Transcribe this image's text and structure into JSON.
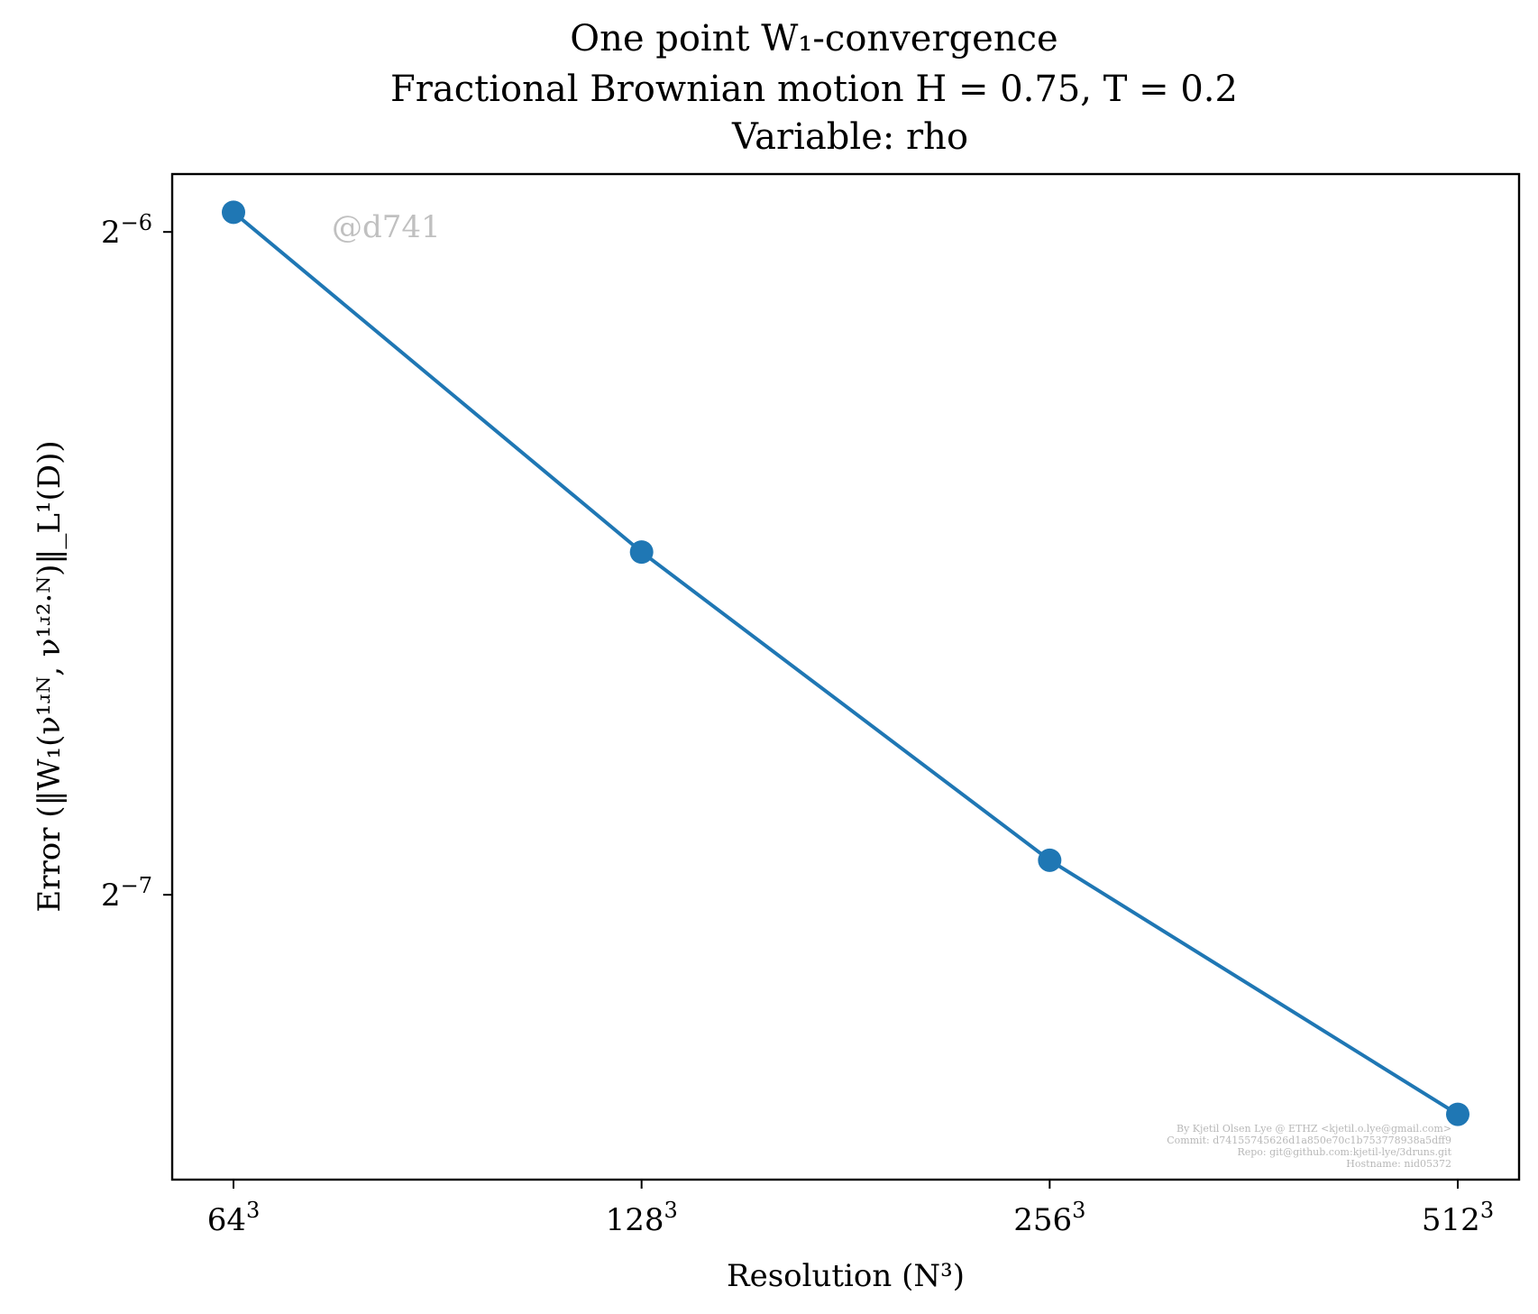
{
  "title_lines": [
    "One point W₁-convergence",
    "Fractional Brownian motion H = 0.75, T = 0.2",
    "Variable: rho"
  ],
  "watermark": "@d741",
  "credits": [
    "By Kjetil Olsen Lye @ ETHZ <kjetil.o.lye@gmail.com>",
    "Commit: d74155745626d1a850e70c1b753778938a5dff9",
    "Repo: git@github.com:kjetil-lye/3druns.git",
    "Hostname: nid05372"
  ],
  "colors": {
    "series": "#1f77b4",
    "axes": "#000000",
    "watermark": "#c0c0c0"
  },
  "chart_data": {
    "type": "line",
    "title": "One point W₁-convergence / Fractional Brownian motion H = 0.75, T = 0.2 / Variable: rho",
    "xlabel": "Resolution (N³)",
    "ylabel": "Error (‖W₁(ν¹ʴᴺ, ν¹ʴ²·ᴺ)‖_L¹(D))",
    "x_scale": "log2",
    "y_scale": "log2",
    "categories": [
      "64³",
      "128³",
      "256³",
      "512³"
    ],
    "x": [
      64,
      128,
      256,
      512
    ],
    "values": [
      0.01595,
      0.01118,
      0.0081,
      0.00621
    ],
    "yticks": [
      0.015625,
      0.0078125
    ],
    "ytick_labels": [
      {
        "base": "2",
        "exp": "−6"
      },
      {
        "base": "2",
        "exp": "−7"
      }
    ],
    "xtick_labels": [
      {
        "base": "64",
        "exp": "3"
      },
      {
        "base": "128",
        "exp": "3"
      },
      {
        "base": "256",
        "exp": "3"
      },
      {
        "base": "512",
        "exp": "3"
      }
    ],
    "ylim": [
      0.0058,
      0.0166
    ],
    "grid": false,
    "marker": "circle"
  }
}
